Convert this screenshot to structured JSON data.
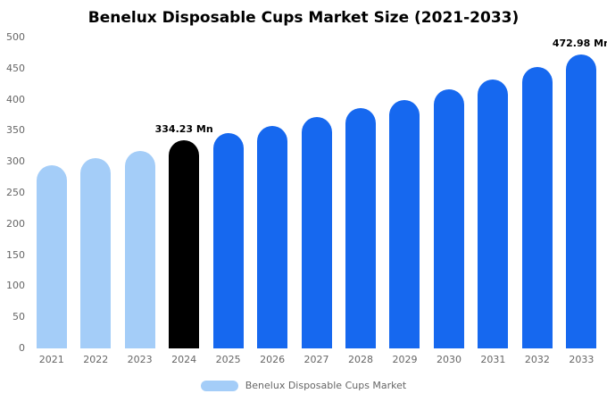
{
  "chart_data": {
    "type": "bar",
    "title": "Benelux Disposable Cups Market Size (2021-2033)",
    "categories": [
      "2021",
      "2022",
      "2023",
      "2024",
      "2025",
      "2026",
      "2027",
      "2028",
      "2029",
      "2030",
      "2031",
      "2032",
      "2033"
    ],
    "values": [
      294,
      306,
      318,
      334.23,
      346,
      358,
      372,
      387,
      400,
      417,
      433,
      453,
      472.98
    ],
    "unit": "Mn",
    "xlabel": "",
    "ylabel": "",
    "ylim": [
      0,
      500
    ],
    "yticks": [
      0,
      50,
      100,
      150,
      200,
      250,
      300,
      350,
      400,
      450,
      500
    ],
    "grid": false,
    "legend": "Benelux Disposable Cups Market",
    "legend_position": "bottom",
    "annotations": [
      {
        "category": "2024",
        "label": "334.23 Mn"
      },
      {
        "category": "2033",
        "label": "472.98 Mn"
      }
    ],
    "colors": {
      "historical": "#a4cdf8",
      "forecast": "#1668ef",
      "highlight": "#000000"
    },
    "bar_color_keys": [
      "historical",
      "historical",
      "historical",
      "highlight",
      "forecast",
      "forecast",
      "forecast",
      "forecast",
      "forecast",
      "forecast",
      "forecast",
      "forecast",
      "forecast"
    ]
  }
}
